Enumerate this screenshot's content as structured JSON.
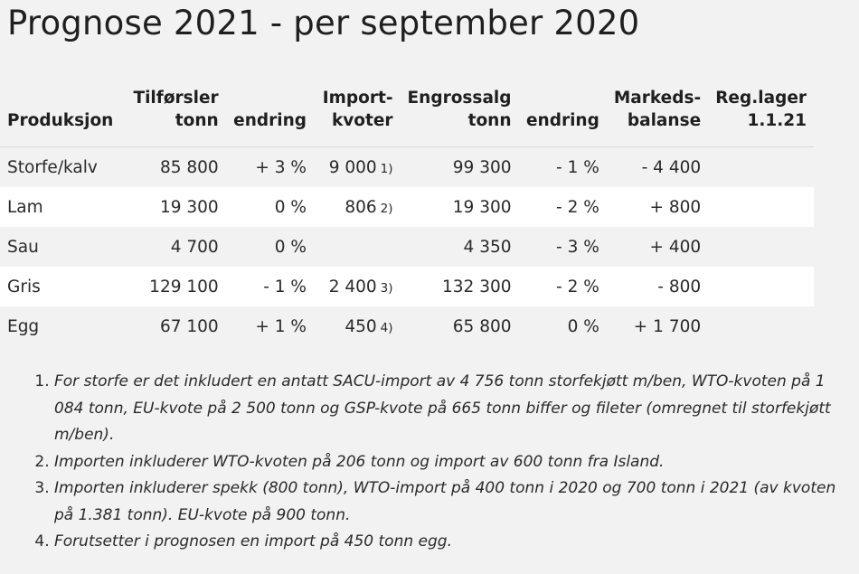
{
  "title": "Prognose 2021 - per september 2020",
  "table": {
    "headers": {
      "produksjon": "Produksjon",
      "tilforsler_1": "Tilførsler",
      "tilforsler_2": "tonn",
      "endring": "endring",
      "import_1": "Import-",
      "import_2": "kvoter",
      "engrossalg_1": "Engrossalg",
      "engrossalg_2": "tonn",
      "endring2": "endring",
      "markeds_1": "Markeds-",
      "markeds_2": "balanse",
      "reglager_1": "Reg.lager",
      "reglager_2": "1.1.21"
    },
    "rows": [
      {
        "produksjon": "Storfe/kalv",
        "tilforsler": "85 800",
        "endring": "+ 3 %",
        "import": "9 000",
        "fn": "1)",
        "engrossalg": "99 300",
        "endring2": "- 1 %",
        "balanse": "- 4 400",
        "reglager": ""
      },
      {
        "produksjon": "Lam",
        "tilforsler": "19 300",
        "endring": "0 %",
        "import": "806",
        "fn": "2)",
        "engrossalg": "19 300",
        "endring2": "- 2 %",
        "balanse": "+  800",
        "reglager": ""
      },
      {
        "produksjon": "Sau",
        "tilforsler": "4 700",
        "endring": "0 %",
        "import": "",
        "fn": "",
        "engrossalg": "4 350",
        "endring2": "- 3 %",
        "balanse": "+ 400",
        "reglager": ""
      },
      {
        "produksjon": "Gris",
        "tilforsler": "129 100",
        "endring": "- 1 %",
        "import": "2 400",
        "fn": "3)",
        "engrossalg": "132 300",
        "endring2": "- 2 %",
        "balanse": "- 800",
        "reglager": ""
      },
      {
        "produksjon": "Egg",
        "tilforsler": "67 100",
        "endring": "+ 1 %",
        "import": "450",
        "fn": "4)",
        "engrossalg": "65 800",
        "endring2": "0 %",
        "balanse": "+ 1 700",
        "reglager": ""
      }
    ]
  },
  "notes": [
    "For storfe er det inkludert en antatt SACU-import av 4 756 tonn storfekjøtt m/ben, WTO-kvoten på 1 084 tonn, EU-kvote på 2 500 tonn og GSP-kvote på 665 tonn biffer og fileter (omregnet til storfekjøtt m/ben).",
    "Importen inkluderer WTO-kvoten på 206 tonn og import av 600 tonn fra Island.",
    "Importen inkluderer spekk (800 tonn), WTO-import på 400 tonn i 2020 og 700 tonn i 2021 (av kvoten på 1.381 tonn). EU-kvote på 900 tonn.",
    "Forutsetter i prognosen en import på 450 tonn egg."
  ]
}
